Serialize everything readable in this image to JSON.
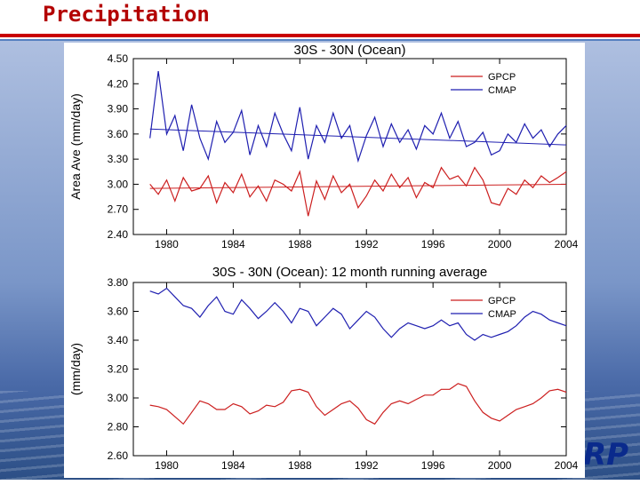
{
  "slide": {
    "title": "Precipitation",
    "logo_text": "RP"
  },
  "colors": {
    "gpcp": "#cc1f1f",
    "cmap": "#1f1fb0",
    "title_red": "#b30000",
    "ocean": "#6f8cc4"
  },
  "chart_data": [
    {
      "type": "line",
      "title": "30S - 30N (Ocean)",
      "ylabel": "Area Ave (mm/day)",
      "xlabel": "",
      "xlim": [
        1978.0,
        2004.0
      ],
      "ylim": [
        2.4,
        4.5
      ],
      "x_ticks": [
        1980,
        1984,
        1988,
        1992,
        1996,
        2000,
        2004
      ],
      "y_ticks": [
        "2.40",
        "2.70",
        "3.00",
        "3.30",
        "3.60",
        "3.90",
        "4.20",
        "4.50"
      ],
      "grid": false,
      "legend_position": "top-right",
      "series": [
        {
          "name": "GPCP",
          "color": "#cc1f1f",
          "x": [
            1979.0,
            1979.5,
            1980.0,
            1980.5,
            1981.0,
            1981.5,
            1982.0,
            1982.5,
            1983.0,
            1983.5,
            1984.0,
            1984.5,
            1985.0,
            1985.5,
            1986.0,
            1986.5,
            1987.0,
            1987.5,
            1988.0,
            1988.5,
            1989.0,
            1989.5,
            1990.0,
            1990.5,
            1991.0,
            1991.5,
            1992.0,
            1992.5,
            1993.0,
            1993.5,
            1994.0,
            1994.5,
            1995.0,
            1995.5,
            1996.0,
            1996.5,
            1997.0,
            1997.5,
            1998.0,
            1998.5,
            1999.0,
            1999.5,
            2000.0,
            2000.5,
            2001.0,
            2001.5,
            2002.0,
            2002.5,
            2003.0,
            2003.5,
            2004.0
          ],
          "values": [
            3.0,
            2.88,
            3.05,
            2.8,
            3.08,
            2.92,
            2.95,
            3.1,
            2.78,
            3.02,
            2.9,
            3.12,
            2.85,
            2.98,
            2.8,
            3.05,
            3.0,
            2.92,
            3.15,
            2.62,
            3.04,
            2.82,
            3.1,
            2.9,
            3.0,
            2.72,
            2.86,
            3.05,
            2.92,
            3.12,
            2.96,
            3.08,
            2.84,
            3.02,
            2.96,
            3.2,
            3.06,
            3.1,
            2.98,
            3.2,
            3.05,
            2.78,
            2.75,
            2.95,
            2.88,
            3.05,
            2.96,
            3.1,
            3.02,
            3.08,
            3.15
          ]
        },
        {
          "name": "CMAP",
          "color": "#1f1fb0",
          "x": [
            1979.0,
            1979.5,
            1980.0,
            1980.5,
            1981.0,
            1981.5,
            1982.0,
            1982.5,
            1983.0,
            1983.5,
            1984.0,
            1984.5,
            1985.0,
            1985.5,
            1986.0,
            1986.5,
            1987.0,
            1987.5,
            1988.0,
            1988.5,
            1989.0,
            1989.5,
            1990.0,
            1990.5,
            1991.0,
            1991.5,
            1992.0,
            1992.5,
            1993.0,
            1993.5,
            1994.0,
            1994.5,
            1995.0,
            1995.5,
            1996.0,
            1996.5,
            1997.0,
            1997.5,
            1998.0,
            1998.5,
            1999.0,
            1999.5,
            2000.0,
            2000.5,
            2001.0,
            2001.5,
            2002.0,
            2002.5,
            2003.0,
            2003.5,
            2004.0
          ],
          "values": [
            3.55,
            4.35,
            3.6,
            3.82,
            3.4,
            3.95,
            3.55,
            3.3,
            3.75,
            3.5,
            3.62,
            3.88,
            3.35,
            3.7,
            3.45,
            3.85,
            3.6,
            3.4,
            3.92,
            3.3,
            3.7,
            3.5,
            3.85,
            3.55,
            3.7,
            3.28,
            3.58,
            3.8,
            3.45,
            3.72,
            3.5,
            3.65,
            3.42,
            3.7,
            3.6,
            3.85,
            3.55,
            3.75,
            3.45,
            3.5,
            3.62,
            3.35,
            3.4,
            3.6,
            3.5,
            3.72,
            3.55,
            3.65,
            3.45,
            3.6,
            3.7
          ]
        }
      ],
      "trend_lines": [
        {
          "series": "CMAP",
          "color": "#1f1fb0",
          "x": [
            1979.0,
            2004.0
          ],
          "values": [
            3.66,
            3.47
          ]
        },
        {
          "series": "GPCP",
          "color": "#cc1f1f",
          "x": [
            1979.0,
            2004.0
          ],
          "values": [
            2.95,
            3.0
          ]
        }
      ]
    },
    {
      "type": "line",
      "title": "30S - 30N (Ocean): 12 month running average",
      "ylabel": "(mm/day)",
      "xlabel": "",
      "xlim": [
        1978.0,
        2004.0
      ],
      "ylim": [
        2.6,
        3.8
      ],
      "x_ticks": [
        1980,
        1984,
        1988,
        1992,
        1996,
        2000,
        2004
      ],
      "y_ticks": [
        "2.60",
        "2.80",
        "3.00",
        "3.20",
        "3.40",
        "3.60",
        "3.80"
      ],
      "grid": false,
      "legend_position": "top-right",
      "series": [
        {
          "name": "GPCP",
          "color": "#cc1f1f",
          "x": [
            1979.0,
            1979.5,
            1980.0,
            1980.5,
            1981.0,
            1981.5,
            1982.0,
            1982.5,
            1983.0,
            1983.5,
            1984.0,
            1984.5,
            1985.0,
            1985.5,
            1986.0,
            1986.5,
            1987.0,
            1987.5,
            1988.0,
            1988.5,
            1989.0,
            1989.5,
            1990.0,
            1990.5,
            1991.0,
            1991.5,
            1992.0,
            1992.5,
            1993.0,
            1993.5,
            1994.0,
            1994.5,
            1995.0,
            1995.5,
            1996.0,
            1996.5,
            1997.0,
            1997.5,
            1998.0,
            1998.5,
            1999.0,
            1999.5,
            2000.0,
            2000.5,
            2001.0,
            2001.5,
            2002.0,
            2002.5,
            2003.0,
            2003.5,
            2004.0
          ],
          "values": [
            2.95,
            2.94,
            2.92,
            2.87,
            2.82,
            2.9,
            2.98,
            2.96,
            2.92,
            2.92,
            2.96,
            2.94,
            2.89,
            2.91,
            2.95,
            2.94,
            2.97,
            3.05,
            3.06,
            3.04,
            2.94,
            2.88,
            2.92,
            2.96,
            2.98,
            2.93,
            2.85,
            2.82,
            2.9,
            2.96,
            2.98,
            2.96,
            2.99,
            3.02,
            3.02,
            3.06,
            3.06,
            3.1,
            3.08,
            2.98,
            2.9,
            2.86,
            2.84,
            2.88,
            2.92,
            2.94,
            2.96,
            3.0,
            3.05,
            3.06,
            3.04
          ]
        },
        {
          "name": "CMAP",
          "color": "#1f1fb0",
          "x": [
            1979.0,
            1979.5,
            1980.0,
            1980.5,
            1981.0,
            1981.5,
            1982.0,
            1982.5,
            1983.0,
            1983.5,
            1984.0,
            1984.5,
            1985.0,
            1985.5,
            1986.0,
            1986.5,
            1987.0,
            1987.5,
            1988.0,
            1988.5,
            1989.0,
            1989.5,
            1990.0,
            1990.5,
            1991.0,
            1991.5,
            1992.0,
            1992.5,
            1993.0,
            1993.5,
            1994.0,
            1994.5,
            1995.0,
            1995.5,
            1996.0,
            1996.5,
            1997.0,
            1997.5,
            1998.0,
            1998.5,
            1999.0,
            1999.5,
            2000.0,
            2000.5,
            2001.0,
            2001.5,
            2002.0,
            2002.5,
            2003.0,
            2003.5,
            2004.0
          ],
          "values": [
            3.74,
            3.72,
            3.76,
            3.7,
            3.64,
            3.62,
            3.56,
            3.64,
            3.7,
            3.6,
            3.58,
            3.68,
            3.62,
            3.55,
            3.6,
            3.66,
            3.6,
            3.52,
            3.62,
            3.6,
            3.5,
            3.56,
            3.62,
            3.58,
            3.48,
            3.54,
            3.6,
            3.56,
            3.48,
            3.42,
            3.48,
            3.52,
            3.5,
            3.48,
            3.5,
            3.54,
            3.5,
            3.52,
            3.44,
            3.4,
            3.44,
            3.42,
            3.44,
            3.46,
            3.5,
            3.56,
            3.6,
            3.58,
            3.54,
            3.52,
            3.5
          ]
        }
      ]
    }
  ]
}
